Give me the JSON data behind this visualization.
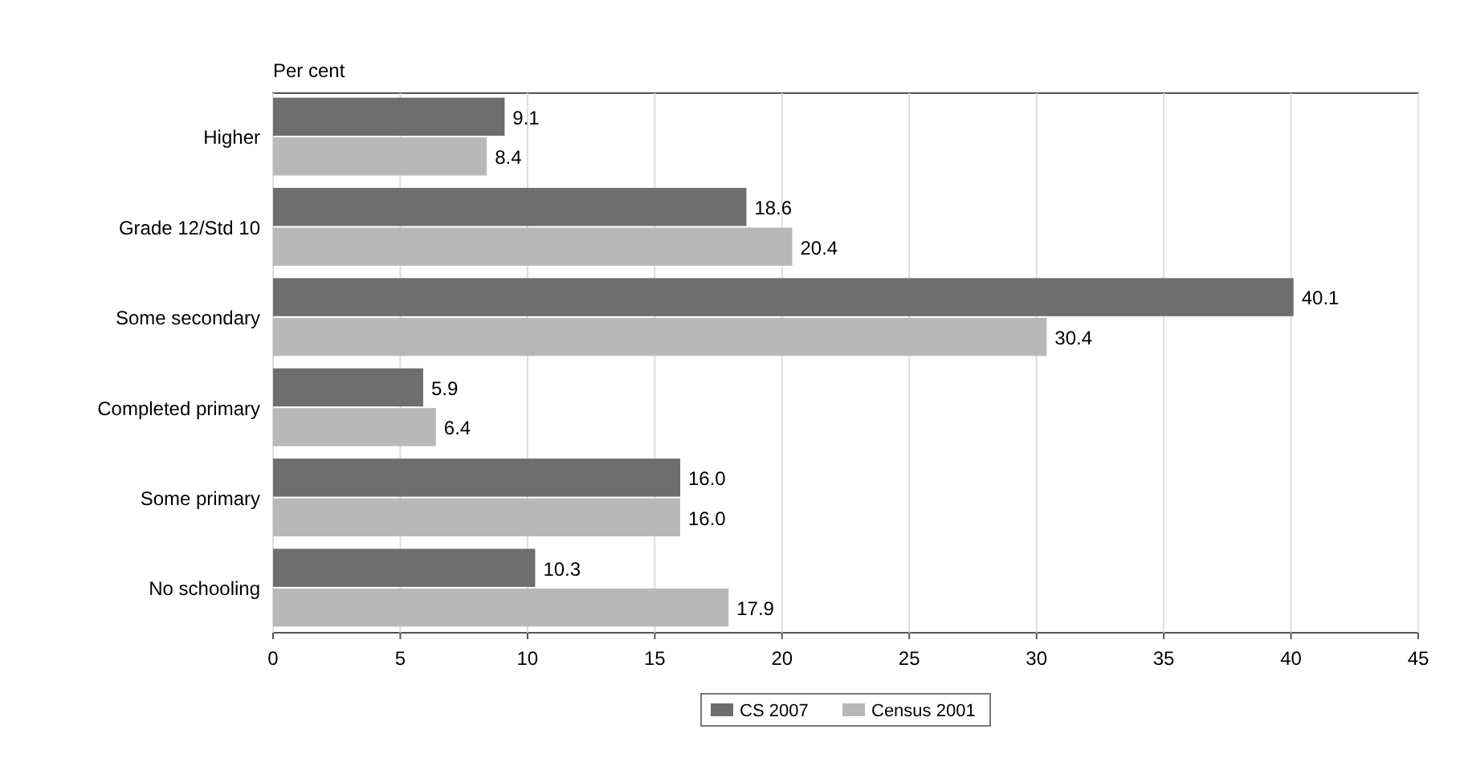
{
  "chart_data": {
    "type": "bar",
    "orientation": "horizontal",
    "xlabel": "Per cent",
    "categories": [
      "Higher",
      "Grade 12/Std 10",
      "Some secondary",
      "Completed primary",
      "Some primary",
      "No schooling"
    ],
    "series": [
      {
        "name": "CS 2007",
        "color": "#6e6e6e",
        "values": [
          9.1,
          18.6,
          40.1,
          5.9,
          16.0,
          10.3
        ],
        "value_labels": [
          "9.1",
          "18.6",
          "40.1",
          "5.9",
          "16.0",
          "10.3"
        ]
      },
      {
        "name": "Census 2001",
        "color": "#b8b8b8",
        "values": [
          8.4,
          20.4,
          30.4,
          6.4,
          16.0,
          17.9
        ],
        "value_labels": [
          "8.4",
          "20.4",
          "30.4",
          "6.4",
          "16.0",
          "17.9"
        ]
      }
    ],
    "xlim": [
      0,
      45
    ],
    "xticks": [
      0,
      5,
      10,
      15,
      20,
      25,
      30,
      35,
      40,
      45
    ],
    "grid": "x",
    "legend": "bottom"
  }
}
